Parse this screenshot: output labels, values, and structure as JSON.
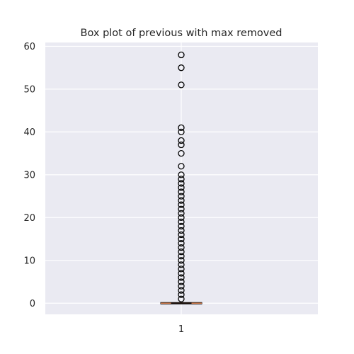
{
  "chart_data": {
    "type": "box",
    "title": "Box plot of previous with max removed",
    "xlabel": "",
    "ylabel": "",
    "categories": [
      "1"
    ],
    "ylim": [
      -2.6,
      60.9
    ],
    "yticks": [
      0,
      10,
      20,
      30,
      40,
      50,
      60
    ],
    "grid": true,
    "box": {
      "category": "1",
      "q1": 0,
      "median": 0,
      "q3": 0,
      "whisker_low": 0,
      "whisker_high": 0,
      "outliers": [
        1,
        2,
        3,
        4,
        5,
        6,
        7,
        8,
        9,
        10,
        11,
        12,
        13,
        14,
        15,
        16,
        17,
        18,
        19,
        20,
        21,
        22,
        23,
        24,
        25,
        26,
        27,
        28,
        29,
        30,
        32,
        35,
        37,
        38,
        40,
        41,
        51,
        55,
        58
      ]
    },
    "colors": {
      "plot_background": "#eaeaf2",
      "grid": "#ffffff",
      "median": "#dd8452",
      "box": "#000000",
      "outlier_edge": "#000000"
    }
  }
}
